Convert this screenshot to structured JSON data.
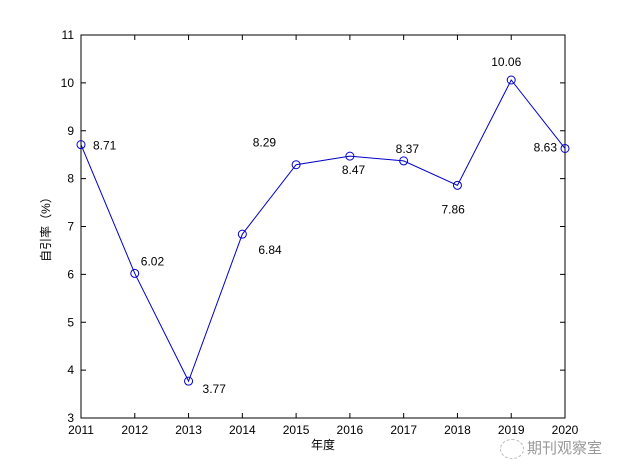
{
  "chart_data": {
    "type": "line",
    "title": "",
    "xlabel": "年度",
    "ylabel": "自引率（%）",
    "categories": [
      "2011",
      "2012",
      "2013",
      "2014",
      "2015",
      "2016",
      "2017",
      "2018",
      "2019",
      "2020"
    ],
    "values": [
      8.71,
      6.02,
      3.77,
      6.84,
      8.29,
      8.47,
      8.37,
      7.86,
      10.06,
      8.63
    ],
    "data_labels": [
      "8.71",
      "6.02",
      "3.77",
      "6.84",
      "8.29",
      "8.47",
      "8.37",
      "7.86",
      "10.06",
      "8.63"
    ],
    "ylim": [
      3,
      11
    ],
    "yticks": [
      "3",
      "4",
      "5",
      "6",
      "7",
      "8",
      "9",
      "10",
      "11"
    ],
    "marker": "circle",
    "color": "#0000cc",
    "grid": false
  },
  "watermark": "期刊观察室"
}
